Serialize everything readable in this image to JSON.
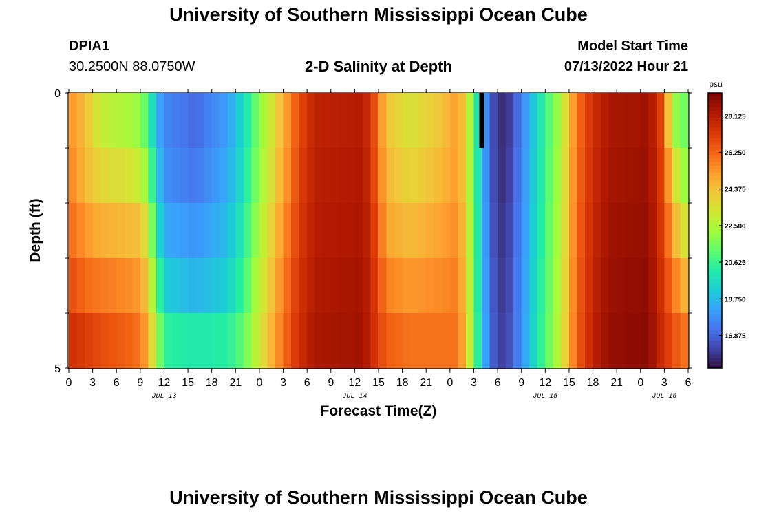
{
  "header": {
    "title": "University of Southern Mississippi Ocean Cube",
    "station_id": "DPIA1",
    "station_coords": "30.2500N  88.0750W",
    "plot_title": "2-D Salinity at Depth",
    "model_label": "Model Start Time",
    "model_time": "07/13/2022 Hour 21"
  },
  "footer": {
    "title": "University of Southern Mississippi Ocean Cube"
  },
  "chart_data": {
    "type": "heatmap",
    "title": "2-D Salinity at Depth",
    "xlabel": "Forecast Time(Z)",
    "ylabel": "Depth (ft)",
    "x_hours_range": [
      0,
      78
    ],
    "x_tick_step_hours": 3,
    "x_tick_labels": [
      "0",
      "3",
      "6",
      "9",
      "12",
      "15",
      "18",
      "21",
      "0",
      "3",
      "6",
      "9",
      "12",
      "15",
      "18",
      "21",
      "0",
      "3",
      "6",
      "9",
      "12",
      "15",
      "18",
      "21",
      "0",
      "3",
      "6"
    ],
    "day_labels": [
      {
        "label": "JUL 13",
        "hour": 12
      },
      {
        "label": "JUL 14",
        "hour": 36
      },
      {
        "label": "JUL 15",
        "hour": 60
      },
      {
        "label": "JUL 16",
        "hour": 75
      }
    ],
    "y_range": [
      0,
      5
    ],
    "y_tick_labels": [
      "0",
      "5"
    ],
    "depth_levels": 5,
    "colorbar": {
      "unit": "psu",
      "range": [
        15.2,
        29.3
      ],
      "tick_values": [
        16.875,
        18.75,
        20.625,
        22.5,
        24.375,
        26.25,
        28.125
      ],
      "tick_labels": [
        "16.875",
        "18.750",
        "20.625",
        "22.500",
        "24.375",
        "26.250",
        "28.125"
      ]
    },
    "missing_marker": {
      "hour": 52,
      "depth_row": 0
    },
    "salinity_rows": [
      {
        "depth_row": 0,
        "keyframes": [
          [
            0,
            25.5
          ],
          [
            2,
            24.5
          ],
          [
            4,
            23.0
          ],
          [
            7,
            22.5
          ],
          [
            9,
            22.0
          ],
          [
            10,
            20.8
          ],
          [
            11,
            18.8
          ],
          [
            12,
            17.6
          ],
          [
            16,
            17.0
          ],
          [
            20,
            18.2
          ],
          [
            22,
            19.6
          ],
          [
            24,
            21.8
          ],
          [
            27,
            24.8
          ],
          [
            29,
            26.8
          ],
          [
            31,
            28.0
          ],
          [
            37,
            28.2
          ],
          [
            38,
            27.5
          ],
          [
            39,
            26.0
          ],
          [
            40,
            24.3
          ],
          [
            43,
            23.4
          ],
          [
            47,
            24.3
          ],
          [
            49,
            25.3
          ],
          [
            50,
            23.8
          ],
          [
            51,
            21.2
          ],
          [
            52,
            18.8
          ],
          [
            53,
            16.8
          ],
          [
            54,
            15.9
          ],
          [
            55,
            15.6
          ],
          [
            56,
            16.5
          ],
          [
            58,
            18.5
          ],
          [
            60,
            20.6
          ],
          [
            62,
            22.5
          ],
          [
            63,
            24.5
          ],
          [
            64,
            26.0
          ],
          [
            66,
            27.6
          ],
          [
            68,
            28.4
          ],
          [
            73,
            28.6
          ],
          [
            74,
            27.8
          ],
          [
            75,
            26.3
          ],
          [
            76,
            22.5
          ],
          [
            77,
            21.5
          ],
          [
            78,
            21.5
          ]
        ]
      },
      {
        "depth_row": 1,
        "keyframes": [
          [
            0,
            25.8
          ],
          [
            2,
            24.6
          ],
          [
            4,
            23.8
          ],
          [
            7,
            23.5
          ],
          [
            9,
            23.0
          ],
          [
            10,
            21.8
          ],
          [
            11,
            19.4
          ],
          [
            12,
            17.8
          ],
          [
            16,
            17.3
          ],
          [
            20,
            18.4
          ],
          [
            22,
            19.8
          ],
          [
            24,
            22.0
          ],
          [
            27,
            25.0
          ],
          [
            29,
            27.0
          ],
          [
            31,
            28.1
          ],
          [
            37,
            28.3
          ],
          [
            38,
            27.6
          ],
          [
            39,
            26.2
          ],
          [
            40,
            24.6
          ],
          [
            43,
            23.8
          ],
          [
            47,
            24.6
          ],
          [
            49,
            25.3
          ],
          [
            50,
            23.8
          ],
          [
            51,
            21.2
          ],
          [
            52,
            18.9
          ],
          [
            53,
            16.9
          ],
          [
            54,
            15.9
          ],
          [
            55,
            15.7
          ],
          [
            56,
            16.6
          ],
          [
            58,
            18.6
          ],
          [
            60,
            20.7
          ],
          [
            62,
            22.6
          ],
          [
            63,
            24.6
          ],
          [
            64,
            26.1
          ],
          [
            66,
            27.7
          ],
          [
            68,
            28.5
          ],
          [
            73,
            28.7
          ],
          [
            74,
            27.9
          ],
          [
            75,
            26.5
          ],
          [
            76,
            24.3
          ],
          [
            77,
            22.3
          ],
          [
            78,
            22.0
          ]
        ]
      },
      {
        "depth_row": 2,
        "keyframes": [
          [
            0,
            26.2
          ],
          [
            2,
            25.4
          ],
          [
            4,
            24.8
          ],
          [
            7,
            24.6
          ],
          [
            9,
            24.4
          ],
          [
            10,
            23.0
          ],
          [
            11,
            20.3
          ],
          [
            12,
            18.4
          ],
          [
            16,
            17.9
          ],
          [
            20,
            18.8
          ],
          [
            22,
            20.2
          ],
          [
            24,
            22.4
          ],
          [
            27,
            25.4
          ],
          [
            29,
            27.2
          ],
          [
            31,
            28.2
          ],
          [
            37,
            28.4
          ],
          [
            38,
            27.8
          ],
          [
            39,
            26.5
          ],
          [
            40,
            25.0
          ],
          [
            43,
            24.5
          ],
          [
            47,
            25.1
          ],
          [
            49,
            25.6
          ],
          [
            50,
            24.0
          ],
          [
            51,
            21.3
          ],
          [
            52,
            19.0
          ],
          [
            53,
            17.0
          ],
          [
            54,
            16.0
          ],
          [
            55,
            15.8
          ],
          [
            56,
            16.7
          ],
          [
            58,
            18.7
          ],
          [
            60,
            20.8
          ],
          [
            62,
            22.7
          ],
          [
            63,
            24.7
          ],
          [
            64,
            26.2
          ],
          [
            66,
            27.8
          ],
          [
            68,
            28.6
          ],
          [
            73,
            28.8
          ],
          [
            74,
            28.0
          ],
          [
            75,
            26.7
          ],
          [
            76,
            25.3
          ],
          [
            77,
            23.6
          ],
          [
            78,
            23.3
          ]
        ]
      },
      {
        "depth_row": 3,
        "keyframes": [
          [
            0,
            26.8
          ],
          [
            2,
            26.2
          ],
          [
            4,
            25.9
          ],
          [
            7,
            25.6
          ],
          [
            9,
            25.3
          ],
          [
            10,
            24.0
          ],
          [
            11,
            21.5
          ],
          [
            12,
            19.2
          ],
          [
            16,
            18.6
          ],
          [
            20,
            19.3
          ],
          [
            22,
            20.6
          ],
          [
            24,
            22.8
          ],
          [
            27,
            25.8
          ],
          [
            29,
            27.4
          ],
          [
            31,
            28.3
          ],
          [
            37,
            28.5
          ],
          [
            38,
            27.9
          ],
          [
            39,
            26.8
          ],
          [
            40,
            25.7
          ],
          [
            43,
            25.3
          ],
          [
            47,
            25.6
          ],
          [
            49,
            25.8
          ],
          [
            50,
            24.2
          ],
          [
            51,
            21.4
          ],
          [
            52,
            19.1
          ],
          [
            53,
            17.1
          ],
          [
            54,
            16.1
          ],
          [
            55,
            15.9
          ],
          [
            56,
            16.8
          ],
          [
            58,
            18.8
          ],
          [
            60,
            20.9
          ],
          [
            62,
            22.8
          ],
          [
            63,
            24.8
          ],
          [
            64,
            26.3
          ],
          [
            66,
            27.9
          ],
          [
            68,
            28.7
          ],
          [
            73,
            28.9
          ],
          [
            74,
            28.1
          ],
          [
            75,
            27.0
          ],
          [
            76,
            26.2
          ],
          [
            77,
            25.0
          ],
          [
            78,
            24.5
          ]
        ]
      },
      {
        "depth_row": 4,
        "keyframes": [
          [
            0,
            27.6
          ],
          [
            2,
            27.2
          ],
          [
            4,
            26.8
          ],
          [
            7,
            26.4
          ],
          [
            9,
            26.0
          ],
          [
            10,
            24.8
          ],
          [
            11,
            22.5
          ],
          [
            12,
            20.4
          ],
          [
            16,
            20.1
          ],
          [
            20,
            20.3
          ],
          [
            22,
            21.2
          ],
          [
            24,
            23.2
          ],
          [
            27,
            26.1
          ],
          [
            29,
            27.6
          ],
          [
            31,
            28.4
          ],
          [
            37,
            28.6
          ],
          [
            38,
            28.0
          ],
          [
            39,
            27.1
          ],
          [
            40,
            26.4
          ],
          [
            43,
            26.0
          ],
          [
            47,
            26.0
          ],
          [
            49,
            26.0
          ],
          [
            50,
            24.4
          ],
          [
            51,
            21.5
          ],
          [
            52,
            19.2
          ],
          [
            53,
            17.2
          ],
          [
            54,
            16.2
          ],
          [
            55,
            16.0
          ],
          [
            56,
            16.9
          ],
          [
            58,
            18.9
          ],
          [
            60,
            21.0
          ],
          [
            62,
            22.9
          ],
          [
            63,
            24.9
          ],
          [
            64,
            26.4
          ],
          [
            66,
            28.0
          ],
          [
            68,
            28.8
          ],
          [
            73,
            29.0
          ],
          [
            74,
            28.2
          ],
          [
            75,
            27.4
          ],
          [
            76,
            26.9
          ],
          [
            77,
            26.2
          ],
          [
            78,
            25.8
          ]
        ]
      }
    ],
    "color_scale": [
      "#30123b",
      "#4145ab",
      "#4675ed",
      "#39a2fc",
      "#1bcfd4",
      "#24eca6",
      "#61fc6c",
      "#a4fc3b",
      "#d1e834",
      "#f3c63a",
      "#fe9b2d",
      "#f36315",
      "#d93806",
      "#b11901",
      "#7a0402"
    ]
  }
}
